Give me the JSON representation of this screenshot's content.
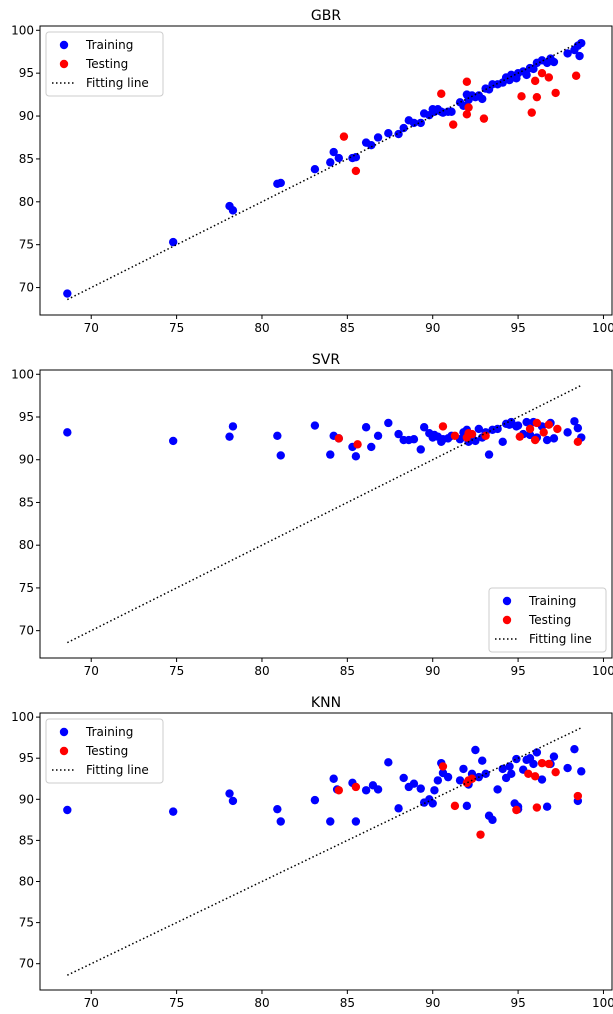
{
  "colors": {
    "training": "#0000ff",
    "testing": "#ff0000",
    "fit": "#000000"
  },
  "chart_data": [
    {
      "type": "scatter",
      "title": "GBR",
      "xlim": [
        67,
        100.5
      ],
      "ylim": [
        66.8,
        100.5
      ],
      "xticks": [
        70,
        75,
        80,
        85,
        90,
        95,
        100
      ],
      "yticks": [
        70,
        75,
        80,
        85,
        90,
        95,
        100
      ],
      "legend_position": "upper-left",
      "fit_line": {
        "label": "Fitting line",
        "x": [
          68.6,
          98.7
        ],
        "y": [
          68.6,
          98.7
        ]
      },
      "series": [
        {
          "name": "Training",
          "color": "training",
          "x": [
            68.6,
            74.8,
            78.1,
            78.3,
            80.9,
            81.1,
            83.1,
            84.0,
            84.2,
            84.5,
            85.3,
            85.5,
            86.1,
            86.4,
            86.8,
            87.4,
            88.0,
            88.3,
            88.6,
            88.9,
            89.3,
            89.5,
            89.8,
            90.0,
            90.1,
            90.3,
            90.5,
            90.6,
            90.9,
            91.1,
            91.6,
            91.8,
            92.0,
            92.1,
            92.3,
            92.5,
            92.7,
            92.9,
            93.1,
            93.3,
            93.5,
            93.8,
            94.1,
            94.3,
            94.5,
            94.6,
            94.9,
            95.0,
            95.3,
            95.5,
            95.7,
            95.9,
            96.1,
            96.4,
            96.7,
            96.9,
            97.1,
            97.9,
            98.3,
            98.5,
            98.7,
            98.6
          ],
          "y": [
            69.3,
            75.3,
            79.5,
            79.0,
            82.1,
            82.2,
            83.8,
            84.6,
            85.8,
            85.1,
            85.1,
            85.2,
            86.9,
            86.6,
            87.5,
            88.0,
            87.9,
            88.6,
            89.5,
            89.2,
            89.2,
            90.3,
            90.1,
            90.8,
            90.5,
            90.8,
            90.5,
            90.4,
            90.5,
            90.5,
            91.6,
            91.2,
            92.5,
            91.9,
            92.4,
            92.2,
            92.4,
            92.0,
            93.2,
            93.1,
            93.7,
            93.7,
            93.9,
            94.5,
            94.2,
            94.8,
            94.4,
            95.0,
            95.2,
            94.8,
            95.6,
            95.5,
            96.2,
            96.5,
            96.2,
            96.7,
            96.3,
            97.3,
            97.7,
            98.2,
            98.5,
            97.0
          ]
        },
        {
          "name": "Testing",
          "color": "testing",
          "x": [
            84.8,
            85.5,
            90.5,
            91.2,
            92.0,
            92.0,
            92.1,
            93.0,
            95.2,
            95.8,
            96.0,
            96.1,
            96.4,
            96.8,
            97.2,
            98.4
          ],
          "y": [
            87.6,
            83.6,
            92.6,
            89.0,
            94.0,
            90.2,
            91.0,
            89.7,
            92.3,
            90.4,
            94.1,
            92.2,
            95.0,
            94.5,
            92.7,
            94.7
          ]
        }
      ]
    },
    {
      "type": "scatter",
      "title": "SVR",
      "xlim": [
        67,
        100.5
      ],
      "ylim": [
        66.8,
        100.5
      ],
      "xticks": [
        70,
        75,
        80,
        85,
        90,
        95,
        100
      ],
      "yticks": [
        70,
        75,
        80,
        85,
        90,
        95,
        100
      ],
      "legend_position": "lower-right",
      "fit_line": {
        "label": "Fitting line",
        "x": [
          68.6,
          98.7
        ],
        "y": [
          68.6,
          98.7
        ]
      },
      "series": [
        {
          "name": "Training",
          "color": "training",
          "x": [
            68.6,
            74.8,
            78.1,
            78.3,
            80.9,
            81.1,
            83.1,
            84.0,
            84.2,
            84.5,
            85.3,
            85.5,
            86.1,
            86.4,
            86.8,
            87.4,
            88.0,
            88.3,
            88.6,
            88.9,
            89.3,
            89.5,
            89.8,
            90.0,
            90.1,
            90.3,
            90.5,
            90.6,
            90.9,
            91.1,
            91.6,
            91.8,
            92.0,
            92.1,
            92.3,
            92.5,
            92.7,
            92.9,
            93.1,
            93.3,
            93.5,
            93.8,
            94.1,
            94.3,
            94.5,
            94.6,
            94.9,
            95.0,
            95.3,
            95.5,
            95.7,
            95.9,
            96.1,
            96.4,
            96.7,
            96.9,
            97.1,
            97.9,
            98.3,
            98.5,
            98.7
          ],
          "y": [
            93.2,
            92.2,
            92.7,
            93.9,
            92.8,
            90.5,
            94.0,
            90.6,
            92.8,
            92.5,
            91.5,
            90.4,
            93.8,
            91.5,
            92.8,
            94.3,
            93.0,
            92.3,
            92.3,
            92.4,
            91.2,
            93.8,
            93.1,
            92.6,
            92.9,
            92.7,
            92.1,
            92.4,
            92.5,
            92.8,
            92.4,
            93.2,
            93.5,
            92.1,
            92.9,
            92.2,
            93.6,
            92.6,
            93.2,
            90.6,
            93.5,
            93.6,
            92.1,
            94.2,
            94.1,
            94.4,
            93.9,
            94.0,
            93.0,
            94.4,
            92.9,
            94.4,
            92.6,
            93.9,
            92.3,
            94.3,
            92.5,
            93.2,
            94.5,
            93.7,
            92.6
          ]
        },
        {
          "name": "Testing",
          "color": "testing",
          "x": [
            84.5,
            85.6,
            90.6,
            91.3,
            92.1,
            92.0,
            92.3,
            93.1,
            95.1,
            95.7,
            96.0,
            96.1,
            96.5,
            96.8,
            97.3,
            98.5
          ],
          "y": [
            92.5,
            91.8,
            93.9,
            92.8,
            93.1,
            92.6,
            93.0,
            92.8,
            92.7,
            93.6,
            92.3,
            94.3,
            93.2,
            94.1,
            93.6,
            92.1
          ]
        }
      ]
    },
    {
      "type": "scatter",
      "title": "KNN",
      "xlim": [
        67,
        100.5
      ],
      "ylim": [
        66.8,
        100.5
      ],
      "xticks": [
        70,
        75,
        80,
        85,
        90,
        95,
        100
      ],
      "yticks": [
        70,
        75,
        80,
        85,
        90,
        95,
        100
      ],
      "legend_position": "upper-left",
      "fit_line": {
        "label": "Fitting line",
        "x": [
          68.6,
          98.7
        ],
        "y": [
          68.6,
          98.7
        ]
      },
      "series": [
        {
          "name": "Training",
          "color": "training",
          "x": [
            68.6,
            74.8,
            78.1,
            78.3,
            80.9,
            81.1,
            83.1,
            84.0,
            84.2,
            84.4,
            85.3,
            85.5,
            86.1,
            86.5,
            86.8,
            87.4,
            88.0,
            88.3,
            88.6,
            88.9,
            89.3,
            89.5,
            89.8,
            90.0,
            90.1,
            90.3,
            90.5,
            90.6,
            90.9,
            91.6,
            91.8,
            92.0,
            92.1,
            92.3,
            92.5,
            92.7,
            92.9,
            93.1,
            93.3,
            93.5,
            93.8,
            94.1,
            94.3,
            94.5,
            94.6,
            94.9,
            95.0,
            95.3,
            95.5,
            95.7,
            95.9,
            96.1,
            96.4,
            96.7,
            96.9,
            97.1,
            97.9,
            98.3,
            98.5,
            98.7,
            95.0,
            94.8
          ],
          "y": [
            88.7,
            88.5,
            90.7,
            89.8,
            88.8,
            87.3,
            89.9,
            87.3,
            92.5,
            91.2,
            92.0,
            87.3,
            91.1,
            91.7,
            91.2,
            94.5,
            88.9,
            92.6,
            91.5,
            91.9,
            91.3,
            89.6,
            90.0,
            89.5,
            91.1,
            92.3,
            94.4,
            93.2,
            92.7,
            92.3,
            93.7,
            89.2,
            91.8,
            93.1,
            96.0,
            92.7,
            94.7,
            93.1,
            88.0,
            87.5,
            91.2,
            93.7,
            92.6,
            94.0,
            93.1,
            94.9,
            89.1,
            93.6,
            94.8,
            95.0,
            94.3,
            95.7,
            92.4,
            89.1,
            94.3,
            95.2,
            93.8,
            96.1,
            89.8,
            93.4,
            88.8,
            89.5
          ]
        },
        {
          "name": "Testing",
          "color": "testing",
          "x": [
            84.5,
            85.5,
            90.6,
            91.3,
            92.0,
            92.1,
            92.3,
            92.8,
            94.9,
            95.6,
            96.0,
            96.1,
            96.4,
            96.8,
            97.2,
            98.5
          ],
          "y": [
            91.1,
            91.5,
            94.0,
            89.2,
            92.0,
            92.3,
            92.5,
            85.7,
            88.7,
            93.1,
            92.8,
            89.0,
            94.4,
            94.3,
            93.3,
            90.4
          ]
        }
      ]
    }
  ]
}
